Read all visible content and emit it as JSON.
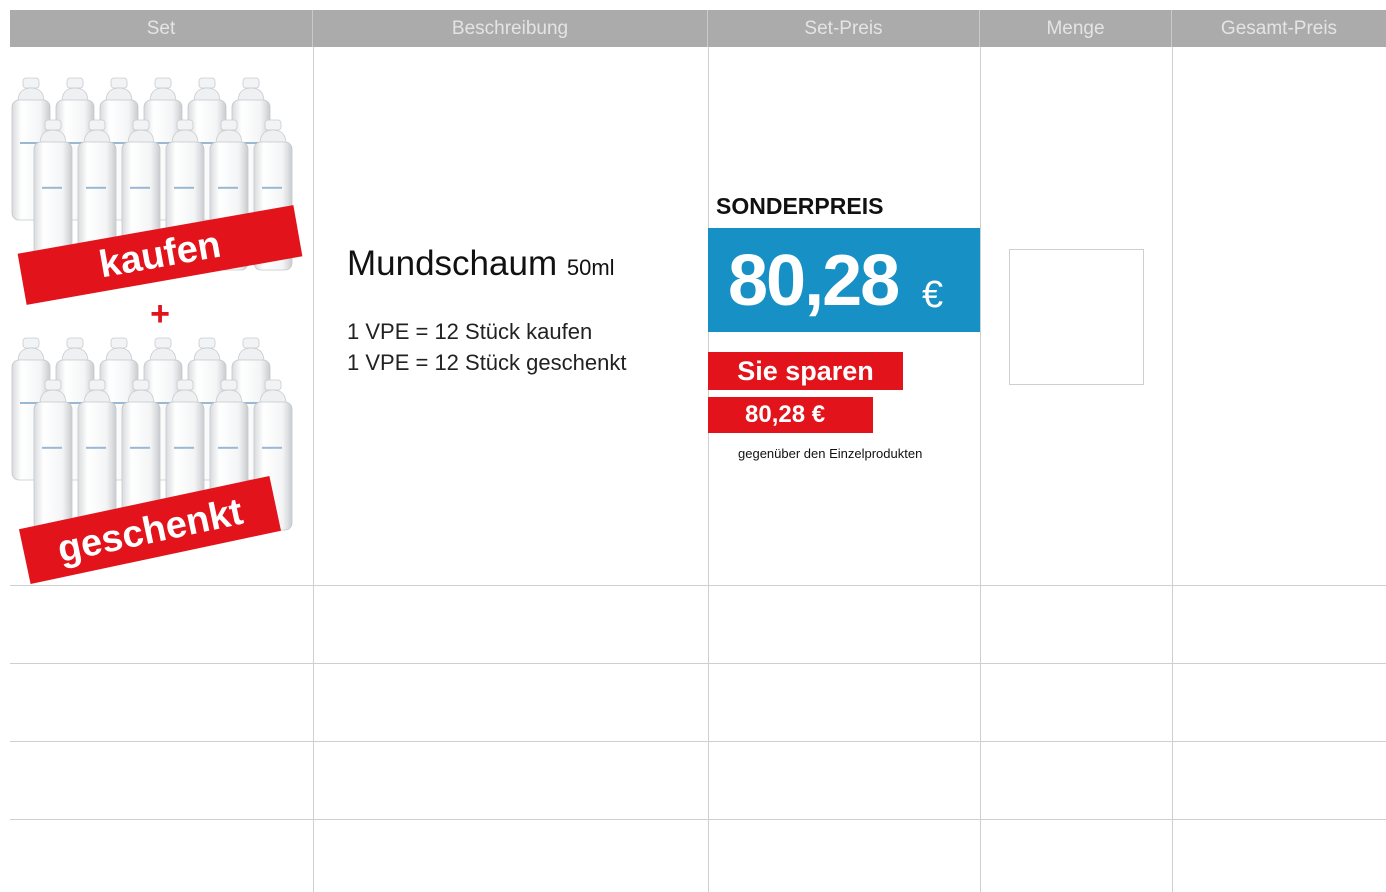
{
  "table": {
    "header": [
      "Set",
      "Beschreibung",
      "Set-Preis",
      "Menge",
      "Gesamt-Preis"
    ],
    "rows": [
      {
        "set": {
          "buy_label": "kaufen",
          "plus": "+",
          "gift_label": "geschenkt"
        },
        "description": {
          "product": "Mundschaum",
          "size": "50ml",
          "lines": [
            "1 VPE = 12 Stück kaufen",
            "1 VPE = 12 Stück geschenkt"
          ]
        },
        "price": {
          "badge": "SONDERPREIS",
          "amount": "80,28",
          "currency": "€",
          "savings_label": "Sie sparen",
          "savings_amount": "80,28 €",
          "note": "gegenüber den Einzelprodukten"
        }
      }
    ]
  }
}
